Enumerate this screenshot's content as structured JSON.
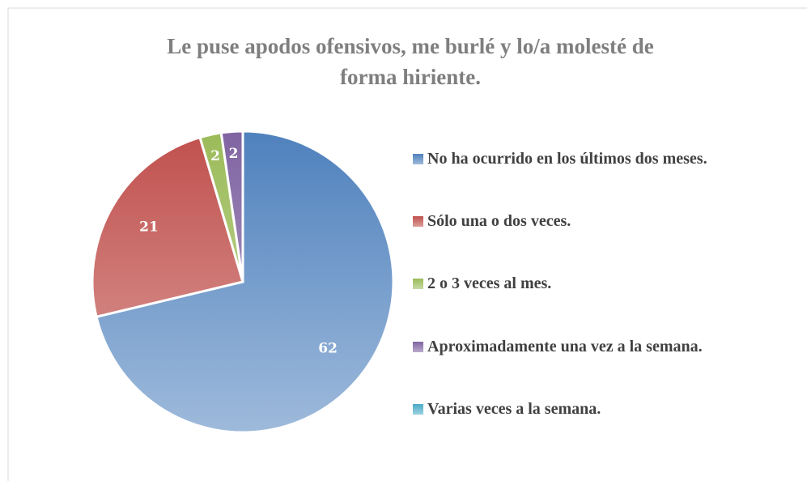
{
  "chart_data": {
    "type": "pie",
    "title": [
      "Le puse apodos ofensivos, me burlé y lo/a molesté de",
      "forma hiriente."
    ],
    "categories": [
      "No ha ocurrido en los últimos dos meses.",
      "Sólo una o dos veces.",
      "2 o 3 veces al mes.",
      "Aproximadamente una vez a la semana.",
      "Varias veces a la semana."
    ],
    "values": [
      62,
      21,
      2,
      2,
      0
    ],
    "colors": [
      "#4f81bd",
      "#c0504d",
      "#9bbb59",
      "#8064a2",
      "#4bacc6"
    ],
    "legend": "right"
  }
}
